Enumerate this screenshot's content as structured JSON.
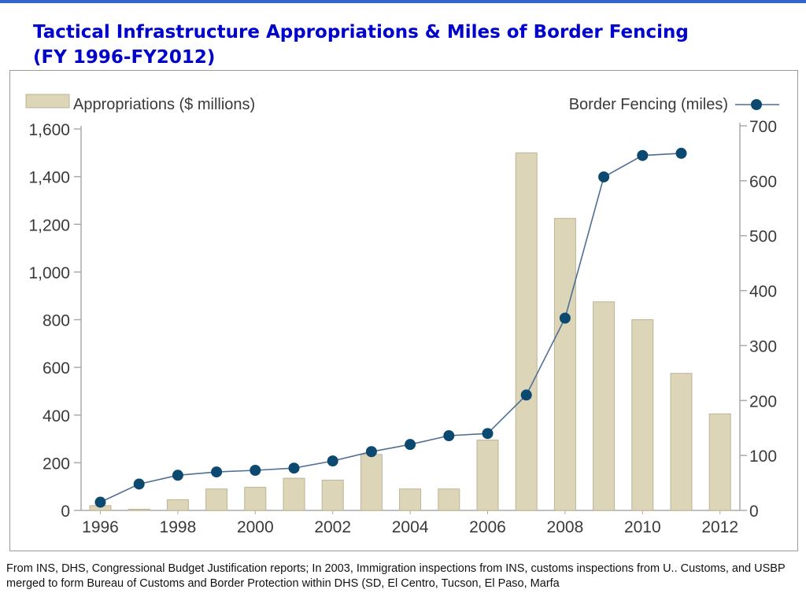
{
  "slide": {
    "title_line1": "Tactical Infrastructure Appropriations & Miles of Border Fencing",
    "title_line2": "(FY 1996-FY2012)",
    "footnote": "From INS, DHS, Congressional Budget Justification reports; In 2003, Immigration inspections from INS, customs inspections from U.. Customs, and USBP merged to form  Bureau of Customs and Border Protection within DHS (SD, El Centro, Tucson, El Paso, Marfa"
  },
  "colors": {
    "title": "#0000cc",
    "bar_fill": "#ddd5b8",
    "bar_stroke": "#bdb395",
    "line": "#4d6f94",
    "marker": "#0c4970",
    "axis": "#aaaaaa"
  },
  "chart_data": {
    "type": "bar",
    "x_tick_labels": [
      "1996",
      "1998",
      "2000",
      "2002",
      "2004",
      "2006",
      "2008",
      "2010",
      "2012"
    ],
    "y_left_tick_labels": [
      "0",
      "200",
      "400",
      "600",
      "800",
      "1,000",
      "1,200",
      "1,400",
      "1,600"
    ],
    "y_right_tick_labels": [
      "0",
      "100",
      "200",
      "300",
      "400",
      "500",
      "600",
      "700"
    ],
    "ylim_left": [
      0,
      1600
    ],
    "ylim_right": [
      0,
      700
    ],
    "legend_placement": "top",
    "grid": false,
    "series": [
      {
        "name": "Appropriations ($ millions)",
        "type": "bar",
        "axis": "left",
        "x": [
          1996,
          1997,
          1998,
          1999,
          2000,
          2001,
          2002,
          2003,
          2004,
          2005,
          2006,
          2007,
          2008,
          2009,
          2010,
          2011,
          2012
        ],
        "values": [
          20,
          5,
          45,
          90,
          97,
          135,
          127,
          235,
          90,
          90,
          295,
          1500,
          1225,
          875,
          800,
          575,
          405
        ]
      },
      {
        "name": "Border Fencing (miles)",
        "type": "line",
        "axis": "right",
        "x": [
          1996,
          1997,
          1998,
          1999,
          2000,
          2001,
          2002,
          2003,
          2004,
          2005,
          2006,
          2007,
          2008,
          2009,
          2010,
          2011
        ],
        "values": [
          15,
          48,
          64,
          70,
          73,
          77,
          90,
          107,
          120,
          136,
          140,
          210,
          350,
          607,
          646,
          650
        ]
      }
    ]
  }
}
